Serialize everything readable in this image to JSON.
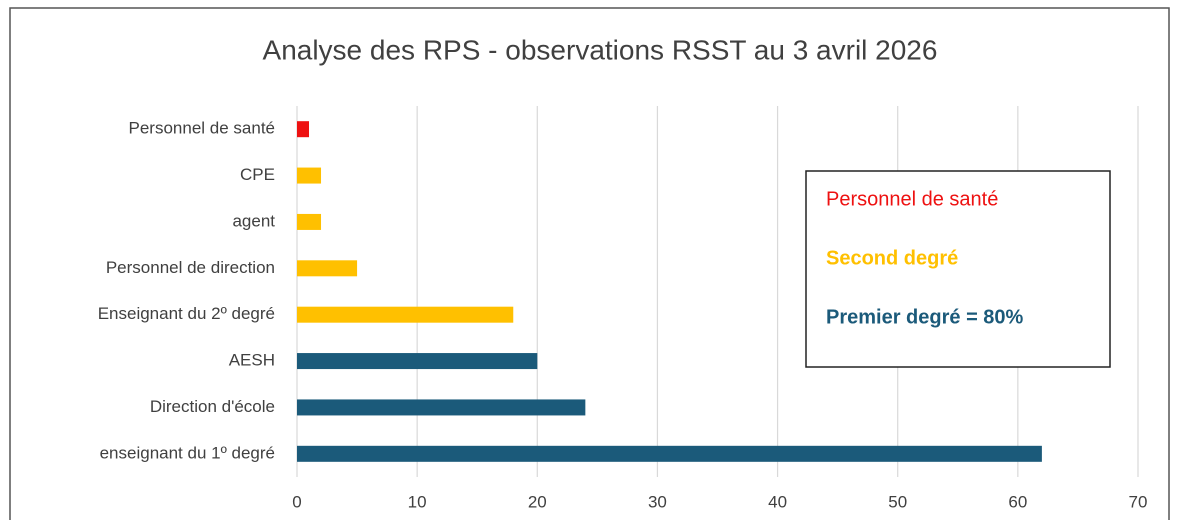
{
  "chart_data": {
    "type": "barh",
    "title": "Analyse des RPS - observations RSST au 3 avril 2026",
    "categories": [
      "Personnel de santé",
      "CPE",
      "agent",
      "Personnel de direction",
      "Enseignant du 2º degré",
      "AESH",
      "Direction d'école",
      "enseignant du 1º degré"
    ],
    "values": [
      1,
      2,
      2,
      5,
      18,
      20,
      24,
      62
    ],
    "colors": [
      "#ee1111",
      "#ffc000",
      "#ffc000",
      "#ffc000",
      "#ffc000",
      "#1b5a7a",
      "#1b5a7a",
      "#1b5a7a"
    ],
    "xlim": [
      0,
      70
    ],
    "xticks": [
      0,
      10,
      20,
      30,
      40,
      50,
      60,
      70
    ],
    "grid": true,
    "annotations": [
      {
        "text": "Personnel de santé",
        "color": "#ee1111",
        "bold": false
      },
      {
        "text": "Second degré",
        "color": "#ffc000",
        "bold": true
      },
      {
        "text": "Premier degré = 80%",
        "color": "#1b5a7a",
        "bold": true
      }
    ]
  }
}
